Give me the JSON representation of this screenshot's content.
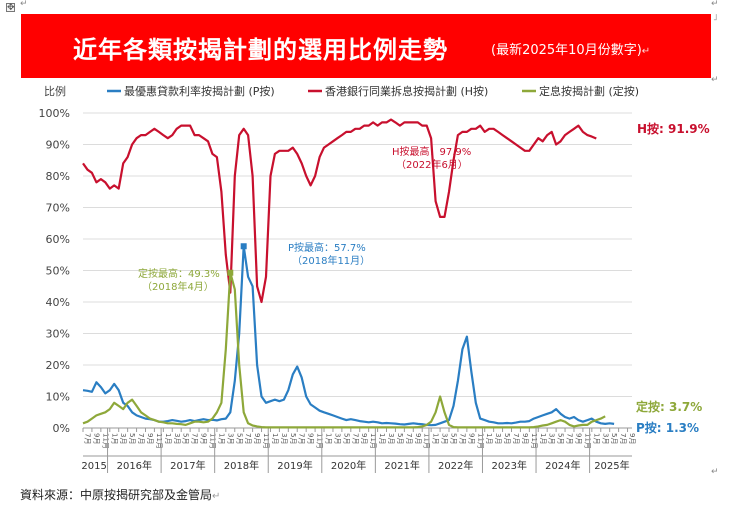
{
  "header": {
    "title": "近年各類按揭計劃的選用比例走勢",
    "subtitle": "(最新2025年10月份數字)",
    "para_mark": "↵"
  },
  "footer": {
    "source": "資料來源：中原按揭研究部及金管局",
    "para_mark": "↵"
  },
  "chart_data": {
    "type": "line",
    "title": "近年各類按揭計劃的選用比例走勢",
    "ylabel": "比例",
    "ylim": [
      0,
      100
    ],
    "yticks": [
      "0%",
      "10%",
      "20%",
      "30%",
      "40%",
      "50%",
      "60%",
      "70%",
      "80%",
      "90%",
      "100%"
    ],
    "year_labels": [
      "2015",
      "2016年",
      "2017年",
      "2018年",
      "2019年",
      "2020年",
      "2021年",
      "2022年",
      "2023年",
      "2024年",
      "2025年"
    ],
    "x_start": "2015-07",
    "x_end": "2025-10",
    "month_ticks": [
      "1月",
      "3月",
      "5月",
      "7月",
      "9月",
      "11月"
    ],
    "legend": [
      "最優惠貸款利率按揭計劃 (P按)",
      "香港銀行同業拆息按揭計劃 (H按)",
      "定息按揭計劃 (定按)"
    ],
    "series": [
      {
        "name": "最優惠貸款利率按揭計劃 (P按)",
        "color": "#2a7ec3",
        "values": [
          12,
          11.8,
          11.5,
          14.5,
          13,
          11,
          12,
          14,
          12,
          8,
          7,
          5,
          4,
          3.5,
          3,
          2.8,
          2.5,
          2,
          2,
          2.2,
          2.5,
          2.3,
          2,
          2.2,
          2.5,
          2.2,
          2.5,
          2.8,
          2.5,
          2.6,
          2.4,
          2.8,
          3,
          5,
          15,
          30,
          57.7,
          48,
          45,
          20,
          10,
          8,
          8.5,
          9,
          8.5,
          9,
          12,
          17,
          19.5,
          16,
          10,
          7.5,
          6.5,
          5.5,
          5,
          4.5,
          4,
          3.5,
          3,
          2.5,
          2.8,
          2.5,
          2.2,
          2,
          1.8,
          2,
          1.8,
          1.5,
          1.6,
          1.5,
          1.4,
          1.2,
          1.1,
          1.3,
          1.5,
          1.3,
          1.2,
          1,
          0.9,
          1,
          1.5,
          2,
          2.5,
          7,
          15,
          25,
          29,
          18,
          8,
          3,
          2.5,
          2,
          1.8,
          1.5,
          1.5,
          1.6,
          1.5,
          1.7,
          2,
          2,
          2.2,
          3,
          3.5,
          4,
          4.5,
          5,
          6,
          4.5,
          3.5,
          3,
          3.5,
          2.5,
          2,
          2.5,
          3,
          2,
          1.5,
          1.3,
          1.5,
          1.3
        ]
      },
      {
        "name": "香港銀行同業拆息按揭計劃 (H按)",
        "color": "#c8102e",
        "values": [
          84,
          82,
          81,
          78,
          79,
          78,
          76,
          77,
          76,
          84,
          86,
          90,
          92,
          93,
          93,
          94,
          95,
          94,
          93,
          92,
          93,
          95,
          96,
          96,
          96,
          93,
          93,
          92,
          91,
          87,
          86,
          75,
          55,
          43,
          80,
          93,
          95,
          93,
          80,
          45,
          40,
          48,
          80,
          87,
          88,
          88,
          88,
          89,
          87,
          84,
          80,
          77,
          80,
          86,
          89,
          90,
          91,
          92,
          93,
          94,
          94,
          95,
          95,
          96,
          96,
          97,
          96,
          97,
          97,
          97.9,
          97,
          96,
          97,
          97,
          97,
          97,
          96,
          96,
          92,
          72,
          67,
          67,
          75,
          85,
          93,
          94,
          94,
          95,
          95,
          96,
          94,
          95,
          95,
          94,
          93,
          92,
          91,
          90,
          89,
          88,
          88,
          90,
          92,
          91,
          93,
          94,
          90,
          91,
          93,
          94,
          95,
          96,
          94,
          93,
          92.5,
          91.9
        ]
      },
      {
        "name": "定息按揭計劃 (定按)",
        "color": "#8ea83a",
        "values": [
          1.5,
          2,
          3,
          4,
          4.5,
          5,
          6,
          8,
          7,
          6,
          8,
          9,
          7,
          5,
          4,
          3,
          2.5,
          2,
          1.8,
          1.5,
          1.5,
          1.3,
          1.2,
          1,
          1.5,
          2,
          2,
          1.8,
          2,
          3,
          5,
          8,
          25,
          49.3,
          44,
          20,
          5,
          1.5,
          0.8,
          0.5,
          0.3,
          0.2,
          0.2,
          0.2,
          0.2,
          0.2,
          0.2,
          0.2,
          0.2,
          0.2,
          0.2,
          0.2,
          0.2,
          0.2,
          0.2,
          0.2,
          0.2,
          0.2,
          0.2,
          0.2,
          0.2,
          0.2,
          0.2,
          0.2,
          0.2,
          0.2,
          0.2,
          0.2,
          0.2,
          0.2,
          0.2,
          0.2,
          0.2,
          0.2,
          0.2,
          0.3,
          0.5,
          1,
          2,
          5,
          10,
          5,
          1,
          0.3,
          0.2,
          0.2,
          0.2,
          0.2,
          0.2,
          0.2,
          0.2,
          0.2,
          0.2,
          0.2,
          0.2,
          0.2,
          0.2,
          0.2,
          0.2,
          0.2,
          0.2,
          0.3,
          0.5,
          0.8,
          1,
          1.5,
          2,
          2.5,
          2,
          1,
          0.5,
          0.8,
          1,
          1,
          2,
          2.5,
          3,
          3.7
        ]
      }
    ],
    "end_labels": [
      "H按: 91.9%",
      "定按: 3.7%",
      "P按: 1.3%"
    ],
    "annotations": [
      {
        "series": 1,
        "lines": [
          "H按最高：97.9%",
          "（2022年6月）"
        ]
      },
      {
        "series": 0,
        "lines": [
          "P按最高：57.7%",
          "（2018年11月）"
        ]
      },
      {
        "series": 2,
        "lines": [
          "定按最高：49.3%",
          "（2018年4月）"
        ]
      }
    ]
  }
}
